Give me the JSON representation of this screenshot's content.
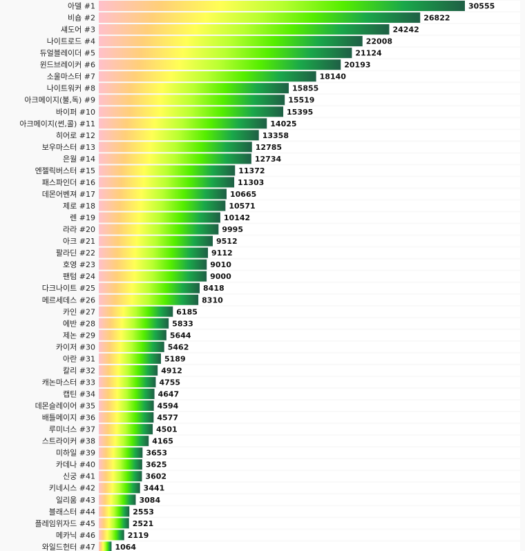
{
  "chart_data": {
    "type": "bar",
    "orientation": "horizontal",
    "categories": [
      "아델 #1",
      "비숍 #2",
      "섀도어 #3",
      "나이트로드 #4",
      "듀얼블레이더 #5",
      "윈드브레이커 #6",
      "소울마스터 #7",
      "나이트워커 #8",
      "아크메이지(불,독) #9",
      "바이퍼 #10",
      "아크메이지(썬,콜) #11",
      "히어로 #12",
      "보우마스터 #13",
      "은월 #14",
      "엔젤릭버스터 #15",
      "패스파인더 #16",
      "데몬어벤져 #17",
      "제로 #18",
      "렌 #19",
      "라라 #20",
      "아크 #21",
      "팔라딘 #22",
      "호영 #23",
      "팬텀 #24",
      "다크나이트 #25",
      "메르세데스 #26",
      "카인 #27",
      "에반 #28",
      "제논 #29",
      "카이저 #30",
      "아란 #31",
      "칼리 #32",
      "캐논마스터 #33",
      "캡틴 #34",
      "데몬슬레이어 #35",
      "배틀메이지 #36",
      "루미너스 #37",
      "스트라이커 #38",
      "미하일 #39",
      "카데나 #40",
      "신궁 #41",
      "키네시스 #42",
      "일리움 #43",
      "블래스터 #44",
      "플레임위자드 #45",
      "메카닉 #46",
      "와일드헌터 #47"
    ],
    "values": [
      30555,
      26822,
      24242,
      22008,
      21124,
      20193,
      18140,
      15855,
      15519,
      15395,
      14025,
      13358,
      12785,
      12734,
      11372,
      11303,
      10665,
      10571,
      10142,
      9995,
      9512,
      9112,
      9010,
      9000,
      8418,
      8310,
      6185,
      5833,
      5644,
      5462,
      5189,
      4912,
      4755,
      4647,
      4594,
      4577,
      4501,
      4165,
      3653,
      3625,
      3602,
      3441,
      3084,
      2553,
      2521,
      2119,
      1064
    ],
    "title": "",
    "xlabel": "",
    "ylabel": "",
    "xlim": [
      0,
      30555
    ],
    "grid": false,
    "legend": "none",
    "gradient_colors": [
      "#ffc0cb",
      "#ffcf78",
      "#ffff55",
      "#b8ff30",
      "#55ee00",
      "#1aa84a",
      "#1f5f45"
    ]
  }
}
